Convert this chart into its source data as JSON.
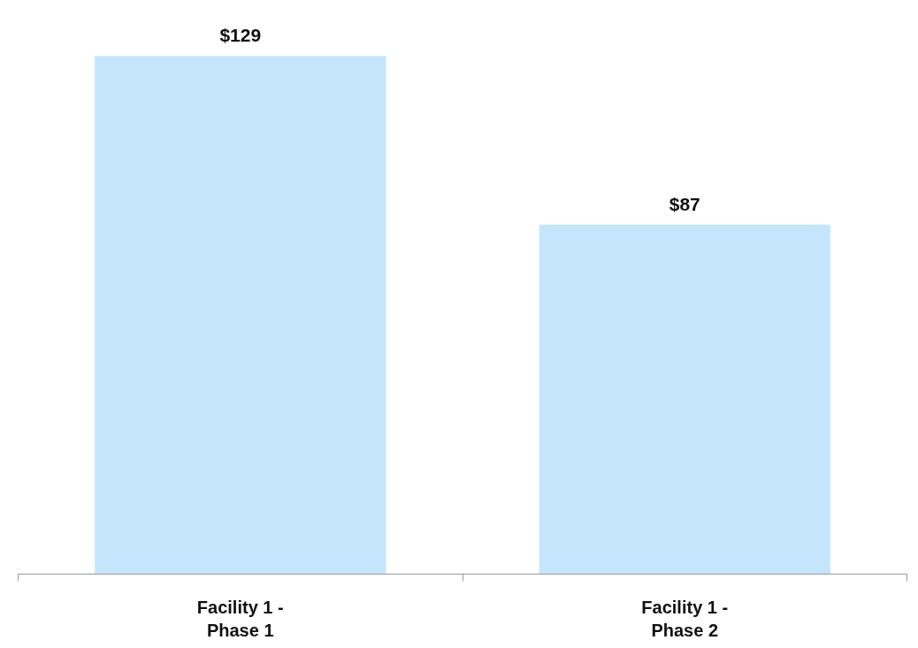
{
  "chart_data": {
    "type": "bar",
    "categories": [
      "Facility 1 -\nPhase 1",
      "Facility 1 -\nPhase 2"
    ],
    "values": [
      129,
      87
    ],
    "value_labels": [
      "$129",
      "$87"
    ],
    "color": "#c5e5fd",
    "grid": false,
    "tick_labels": "x"
  }
}
